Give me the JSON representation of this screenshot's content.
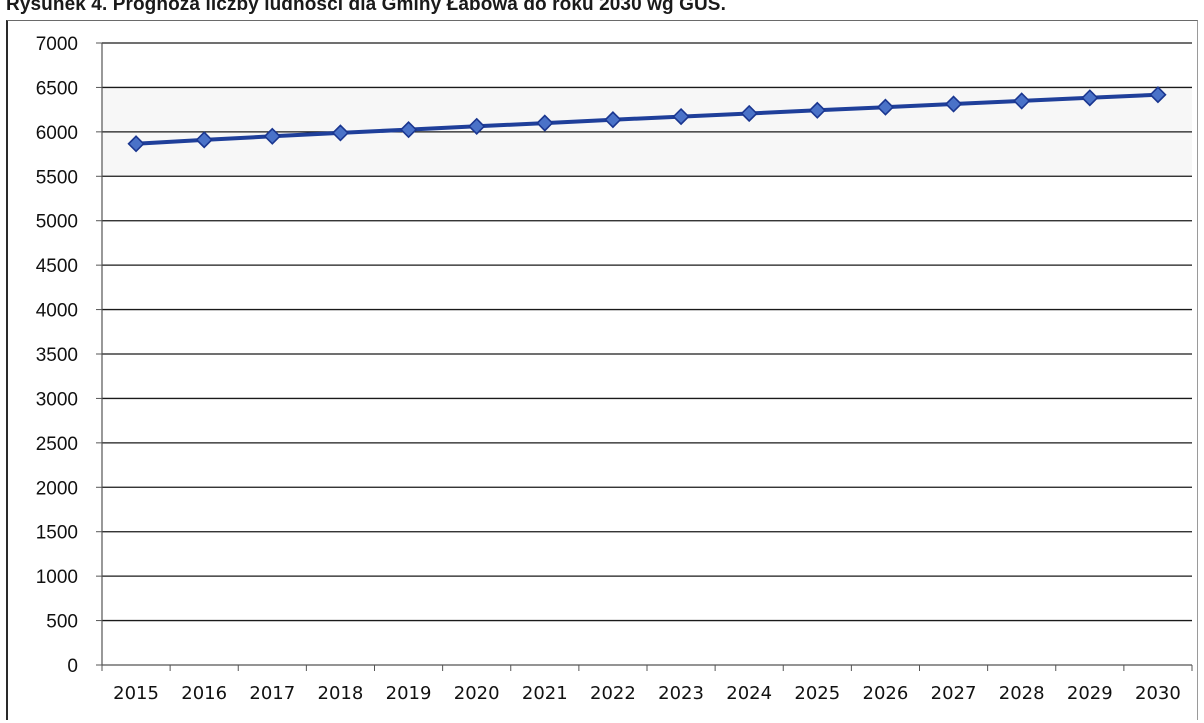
{
  "page": {
    "title": "Rysunek 4. Prognoza liczby ludności dla Gminy Łabowa do roku 2030 wg GUS."
  },
  "colors": {
    "series_line": "#1f3f9a",
    "marker_fill": "#4a72c8",
    "marker_stroke": "#1a3690",
    "grid": "#1a1a1a",
    "axis": "#555555",
    "plot_band": "#f7f7f7"
  },
  "chart_data": {
    "type": "line",
    "title": "Rysunek 4. Prognoza liczby ludności dla Gminy Łabowa do roku 2030 wg GUS.",
    "xlabel": "",
    "ylabel": "",
    "categories": [
      "2015",
      "2016",
      "2017",
      "2018",
      "2019",
      "2020",
      "2021",
      "2022",
      "2023",
      "2024",
      "2025",
      "2026",
      "2027",
      "2028",
      "2029",
      "2030"
    ],
    "series": [
      {
        "values": [
          5866,
          5910,
          5950,
          5988,
          6025,
          6062,
          6099,
          6137,
          6172,
          6207,
          6243,
          6278,
          6313,
          6348,
          6383,
          6418
        ],
        "marker": "diamond"
      }
    ],
    "ylim": [
      0,
      7000
    ],
    "yticks": [
      "0",
      "500",
      "1000",
      "1500",
      "2000",
      "2500",
      "3000",
      "3500",
      "4000",
      "4500",
      "5000",
      "5500",
      "6000",
      "6500",
      "7000"
    ],
    "grid": true,
    "legend": "none"
  }
}
